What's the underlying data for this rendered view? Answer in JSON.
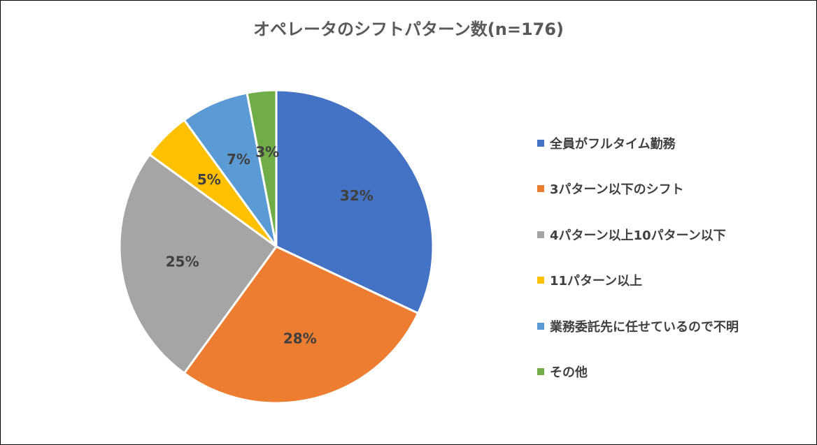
{
  "chart_data": {
    "type": "pie",
    "title": "オペレータのシフトパターン数(n=176)",
    "categories": [
      "全員がフルタイム勤務",
      "3パターン以下のシフト",
      "4パターン以上10パターン以下",
      "11パターン以上",
      "業務委託先に任せているので不明",
      "その他"
    ],
    "values": [
      32,
      28,
      25,
      5,
      7,
      3
    ],
    "data_labels": [
      "32%",
      "28%",
      "25%",
      "5%",
      "7%",
      "3%"
    ],
    "colors": [
      "#4472C4",
      "#ED7D31",
      "#A5A5A5",
      "#FFC000",
      "#5B9BD5",
      "#70AD47"
    ],
    "legend_position": "right"
  }
}
